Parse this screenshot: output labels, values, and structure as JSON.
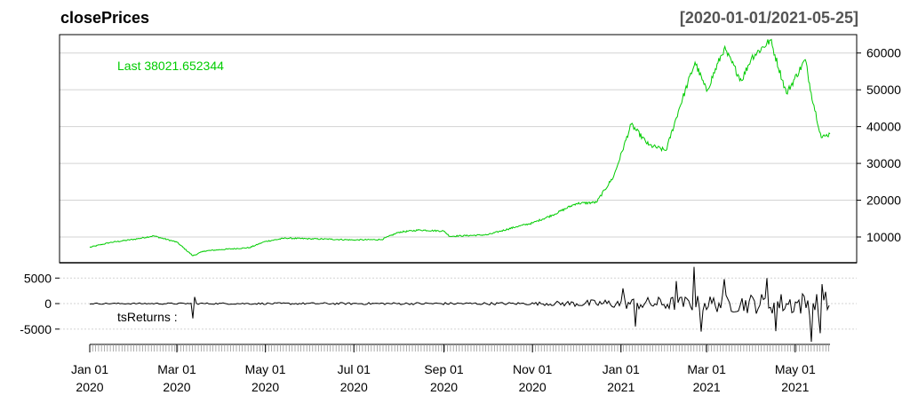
{
  "chart_data": {
    "type": "line",
    "title": "closePrices",
    "date_range": "[2020-01-01/2021-05-25]",
    "colors": {
      "price": "#00cc00",
      "returns": "#000000",
      "grid": "#d3d3d3",
      "range": "#555555"
    },
    "x_ticks": [
      {
        "date": "2020-01-01",
        "month": "Jan 01",
        "year": "2020"
      },
      {
        "date": "2020-03-01",
        "month": "Mar 01",
        "year": "2020"
      },
      {
        "date": "2020-05-01",
        "month": "May 01",
        "year": "2020"
      },
      {
        "date": "2020-07-01",
        "month": "Jul 01",
        "year": "2020"
      },
      {
        "date": "2020-09-01",
        "month": "Sep 01",
        "year": "2020"
      },
      {
        "date": "2020-11-01",
        "month": "Nov 01",
        "year": "2020"
      },
      {
        "date": "2021-01-01",
        "month": "Jan 01",
        "year": "2021"
      },
      {
        "date": "2021-03-01",
        "month": "Mar 01",
        "year": "2021"
      },
      {
        "date": "2021-05-01",
        "month": "May 01",
        "year": "2021"
      }
    ],
    "price_panel": {
      "series_name": "closePrices",
      "last_label": "Last 38021.652344",
      "ylim": [
        3000,
        65000
      ],
      "y_ticks": [
        10000,
        20000,
        30000,
        40000,
        50000,
        60000
      ],
      "y_tick_labels": [
        "10000",
        "20000",
        "30000",
        "40000",
        "50000",
        "60000"
      ],
      "points": [
        [
          "2020-01-01",
          7200
        ],
        [
          "2020-01-15",
          8500
        ],
        [
          "2020-02-01",
          9400
        ],
        [
          "2020-02-14",
          10300
        ],
        [
          "2020-03-01",
          8600
        ],
        [
          "2020-03-12",
          4900
        ],
        [
          "2020-03-20",
          6200
        ],
        [
          "2020-04-01",
          6600
        ],
        [
          "2020-04-20",
          7100
        ],
        [
          "2020-05-01",
          8800
        ],
        [
          "2020-05-15",
          9700
        ],
        [
          "2020-06-01",
          9500
        ],
        [
          "2020-06-15",
          9400
        ],
        [
          "2020-07-01",
          9200
        ],
        [
          "2020-07-20",
          9300
        ],
        [
          "2020-08-01",
          11300
        ],
        [
          "2020-08-15",
          11900
        ],
        [
          "2020-09-01",
          11600
        ],
        [
          "2020-09-05",
          10200
        ],
        [
          "2020-10-01",
          10600
        ],
        [
          "2020-10-21",
          12800
        ],
        [
          "2020-11-01",
          13800
        ],
        [
          "2020-11-15",
          16000
        ],
        [
          "2020-12-01",
          19100
        ],
        [
          "2020-12-15",
          19400
        ],
        [
          "2020-12-27",
          26500
        ],
        [
          "2021-01-08",
          40600
        ],
        [
          "2021-01-20",
          35000
        ],
        [
          "2021-02-01",
          33500
        ],
        [
          "2021-02-10",
          44800
        ],
        [
          "2021-02-21",
          57500
        ],
        [
          "2021-03-01",
          49600
        ],
        [
          "2021-03-13",
          61200
        ],
        [
          "2021-03-25",
          52500
        ],
        [
          "2021-04-01",
          58800
        ],
        [
          "2021-04-14",
          63500
        ],
        [
          "2021-04-25",
          49000
        ],
        [
          "2021-05-08",
          58200
        ],
        [
          "2021-05-12",
          49200
        ],
        [
          "2021-05-19",
          37000
        ],
        [
          "2021-05-22",
          37500
        ],
        [
          "2021-05-25",
          38021.652344
        ]
      ]
    },
    "returns_panel": {
      "series_name": "tsReturns",
      "label": "tsReturns :",
      "ylim": [
        -8000,
        8000
      ],
      "y_ticks": [
        -5000,
        0,
        5000
      ],
      "y_tick_labels": [
        "-5000",
        "0",
        "5000"
      ],
      "spikes": [
        [
          "2020-03-12",
          -2900
        ],
        [
          "2020-03-13",
          1300
        ],
        [
          "2021-01-03",
          3000
        ],
        [
          "2021-01-11",
          -4500
        ],
        [
          "2021-02-08",
          4400
        ],
        [
          "2021-02-21",
          7200
        ],
        [
          "2021-02-26",
          -5500
        ],
        [
          "2021-03-14",
          4800
        ],
        [
          "2021-04-12",
          5000
        ],
        [
          "2021-04-18",
          -5400
        ],
        [
          "2021-05-12",
          -7500
        ],
        [
          "2021-05-18",
          -5800
        ],
        [
          "2021-05-20",
          3800
        ]
      ]
    }
  }
}
